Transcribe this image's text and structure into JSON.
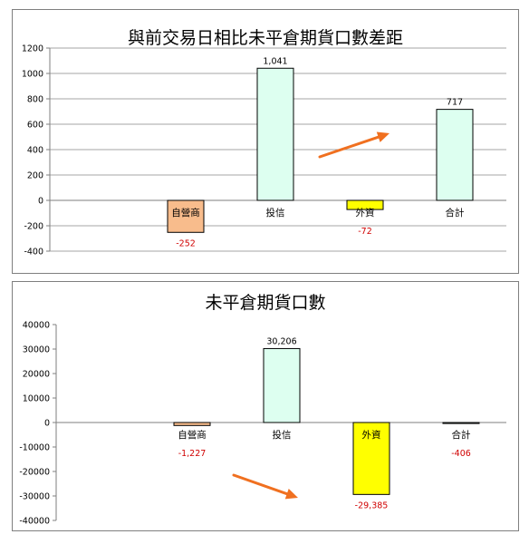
{
  "chart_data": [
    {
      "type": "bar",
      "title": "與前交易日相比未平倉期貨口數差距",
      "categories": [
        "自營商",
        "投信",
        "外資",
        "合計"
      ],
      "values": [
        -252,
        1041,
        -72,
        717
      ],
      "value_labels": [
        "-252",
        "1,041",
        "-72",
        "717"
      ],
      "bar_colors": [
        "#f8bc8c",
        "#ddfff0",
        "#ffff00",
        "#ddfff0"
      ],
      "positive_label_color": "#000000",
      "negative_label_color": "#d00000",
      "ylim": [
        -400,
        1200
      ],
      "yticks": [
        -400,
        -200,
        0,
        200,
        400,
        600,
        800,
        1000,
        1200
      ],
      "ytick_labels": [
        "-400",
        "-200",
        "0",
        "200",
        "400",
        "600",
        "800",
        "1000",
        "1200"
      ],
      "grid": true,
      "legend": "none",
      "annotation": "orange arrow pointing up-right"
    },
    {
      "type": "bar",
      "title": "未平倉期貨口數",
      "categories": [
        "自營商",
        "投信",
        "外資",
        "合計"
      ],
      "values": [
        -1227,
        30206,
        -29385,
        -406
      ],
      "value_labels": [
        "-1,227",
        "30,206",
        "-29,385",
        "-406"
      ],
      "bar_colors": [
        "#f8bc8c",
        "#ddfff0",
        "#ffff00",
        "#ddfff0"
      ],
      "positive_label_color": "#000000",
      "negative_label_color": "#d00000",
      "ylim": [
        -40000,
        40000
      ],
      "yticks": [
        -40000,
        -30000,
        -20000,
        -10000,
        0,
        10000,
        20000,
        30000,
        40000
      ],
      "ytick_labels": [
        "-40000",
        "-30000",
        "-20000",
        "-10000",
        "0",
        "10000",
        "20000",
        "30000",
        "40000"
      ],
      "grid": false,
      "legend": "none",
      "annotation": "orange arrow pointing down-right"
    }
  ],
  "arrow_color": "#f07020"
}
